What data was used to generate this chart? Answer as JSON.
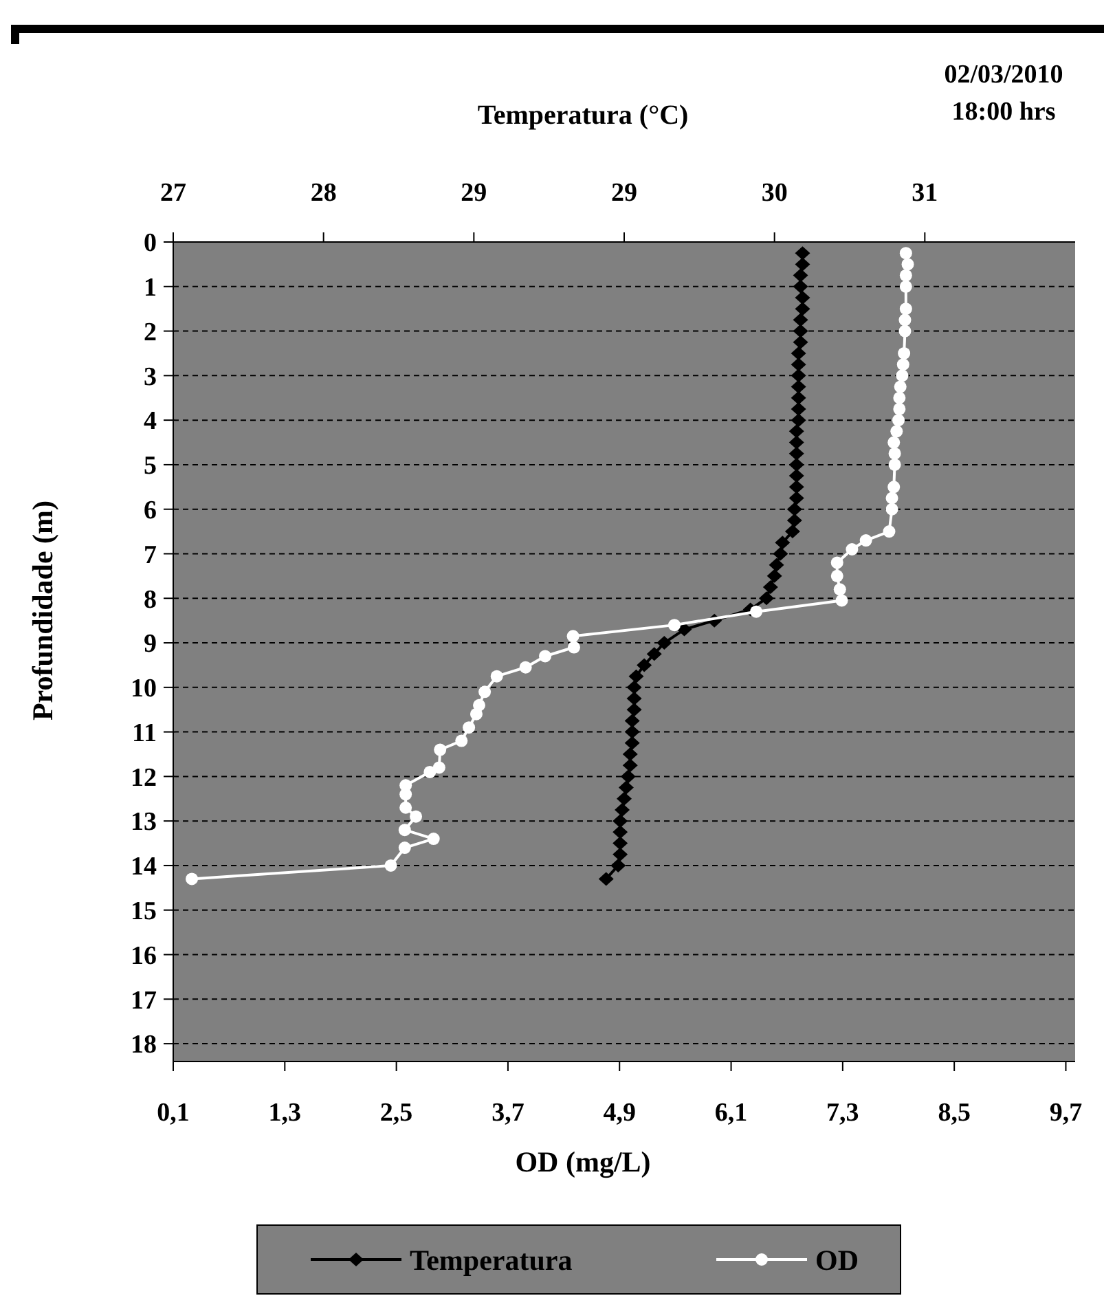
{
  "chart_data": {
    "type": "line",
    "ylabel": "Profundidade (m)",
    "xlabel": "OD (mg/L)",
    "x2label": "Temperatura (°C)",
    "annotations": [
      "02/03/2010",
      "18:00 hrs"
    ],
    "xlim": [
      0.1,
      9.8
    ],
    "xticks": [
      {
        "value": 0.1,
        "label": "0,1"
      },
      {
        "value": 1.3,
        "label": "1,3"
      },
      {
        "value": 2.5,
        "label": "2,5"
      },
      {
        "value": 3.7,
        "label": "3,7"
      },
      {
        "value": 4.9,
        "label": "4,9"
      },
      {
        "value": 6.1,
        "label": "6,1"
      },
      {
        "value": 7.3,
        "label": "7,3"
      },
      {
        "value": 8.5,
        "label": "8,5"
      },
      {
        "value": 9.7,
        "label": "9,7"
      }
    ],
    "x2lim": [
      27,
      31.5
    ],
    "x2ticks": [
      27,
      {
        "value": 27.75,
        "label": "28"
      },
      {
        "value": 28.5,
        "label": "29"
      },
      {
        "value": 29.25,
        "label": "29"
      },
      30,
      {
        "value": 30.75,
        "label": "31"
      }
    ],
    "ylim": [
      18.4,
      0
    ],
    "yticks": [
      0,
      1,
      2,
      3,
      4,
      5,
      6,
      7,
      8,
      9,
      10,
      11,
      12,
      13,
      14,
      15,
      16,
      17,
      18
    ],
    "grid": "y",
    "legend": "bottom",
    "line_style": "solid",
    "series": [
      {
        "name": "Temperatura",
        "color": "#000000",
        "axis": "x2",
        "marker": "diamond",
        "x": [
          30.14,
          30.14,
          30.13,
          30.13,
          30.14,
          30.14,
          30.13,
          30.13,
          30.13,
          30.12,
          30.12,
          30.12,
          30.12,
          30.12,
          30.12,
          30.12,
          30.11,
          30.11,
          30.11,
          30.11,
          30.11,
          30.11,
          30.11,
          30.1,
          30.1,
          30.09,
          30.04,
          30.03,
          30.01,
          30.0,
          29.98,
          29.96,
          29.88,
          29.7,
          29.55,
          29.45,
          29.4,
          29.35,
          29.31,
          29.3,
          29.3,
          29.3,
          29.29,
          29.29,
          29.29,
          29.28,
          29.28,
          29.27,
          29.26,
          29.25,
          29.24,
          29.23,
          29.23,
          29.23,
          29.23,
          29.22,
          29.16
        ],
        "values": [
          0.25,
          0.5,
          0.75,
          1,
          1.25,
          1.5,
          1.75,
          2,
          2.25,
          2.5,
          2.75,
          3,
          3.25,
          3.5,
          3.75,
          4,
          4.25,
          4.5,
          4.75,
          5,
          5.25,
          5.5,
          5.75,
          6,
          6.25,
          6.5,
          6.75,
          7,
          7.25,
          7.5,
          7.75,
          8,
          8.25,
          8.5,
          8.7,
          9,
          9.25,
          9.5,
          9.75,
          10,
          10.25,
          10.5,
          10.75,
          11,
          11.25,
          11.5,
          11.75,
          12,
          12.25,
          12.5,
          12.75,
          13,
          13.25,
          13.5,
          13.75,
          14,
          14.3
        ]
      },
      {
        "name": "OD",
        "color": "#ffffff",
        "marker": "circle",
        "x": [
          7.98,
          8.0,
          7.98,
          7.98,
          7.98,
          7.97,
          7.97,
          7.96,
          7.95,
          7.94,
          7.92,
          7.91,
          7.91,
          7.9,
          7.88,
          7.85,
          7.86,
          7.86,
          7.85,
          7.83,
          7.83,
          7.8,
          7.55,
          7.4,
          7.24,
          7.24,
          7.27,
          7.29,
          6.37,
          5.49,
          4.4,
          4.41,
          4.1,
          3.89,
          3.58,
          3.45,
          3.39,
          3.36,
          3.28,
          3.2,
          2.97,
          2.96,
          2.86,
          2.6,
          2.6,
          2.6,
          2.71,
          2.59,
          2.9,
          2.59,
          2.44,
          0.3
        ],
        "values": [
          0.25,
          0.5,
          0.75,
          1,
          1.5,
          1.75,
          2,
          2.5,
          2.75,
          3,
          3.25,
          3.5,
          3.75,
          4,
          4.25,
          4.5,
          4.75,
          5,
          5.5,
          5.75,
          6,
          6.5,
          6.7,
          6.9,
          7.2,
          7.5,
          7.8,
          8.05,
          8.3,
          8.6,
          8.85,
          9.1,
          9.3,
          9.55,
          9.75,
          10.1,
          10.4,
          10.6,
          10.9,
          11.2,
          11.4,
          11.8,
          11.9,
          12.2,
          12.4,
          12.7,
          12.9,
          13.2,
          13.4,
          13.6,
          14.0,
          14.3
        ]
      }
    ]
  }
}
